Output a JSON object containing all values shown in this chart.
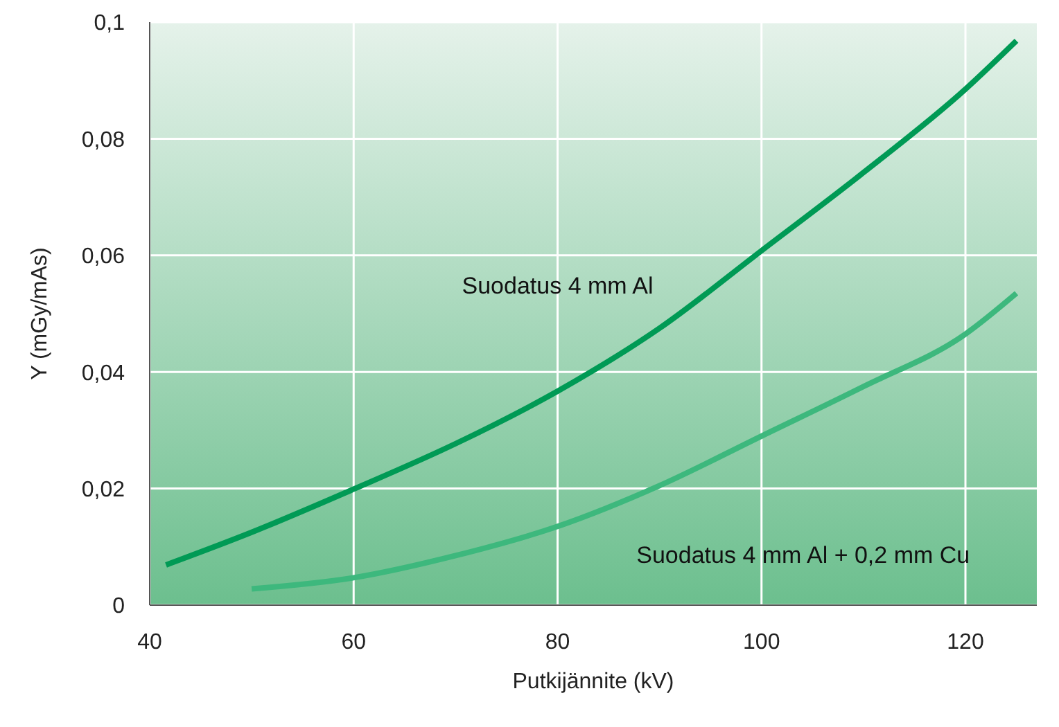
{
  "chart_data": {
    "type": "line",
    "xlabel": "Putkijännite (kV)",
    "ylabel": "Y (mGy/mAs)",
    "xlim": [
      40,
      127
    ],
    "xticks": [
      40,
      60,
      80,
      100,
      120
    ],
    "ylim": [
      0,
      0.1
    ],
    "yticks": [
      0,
      {
        "value": 0.02,
        "label": "0,02"
      },
      {
        "value": 0.04,
        "label": "0,04"
      },
      {
        "value": 0.06,
        "label": "0,06"
      },
      {
        "value": 0.08,
        "label": "0,08"
      },
      {
        "value": 0.1,
        "label": "0,1"
      }
    ],
    "grid": true,
    "marker": "none",
    "line_style": "solid",
    "series": [
      {
        "name": "Suodatus 4 mm Al",
        "color": "#009a55",
        "x": [
          41.6,
          50,
          60,
          70,
          80,
          90,
          100,
          110,
          120,
          125
        ],
        "values": [
          0.0069,
          0.0125,
          0.0199,
          0.0277,
          0.0367,
          0.0475,
          0.0608,
          0.0742,
          0.0885,
          0.0968
        ]
      },
      {
        "name": "Suodatus 4 mm Al + 0,2 mm Cu",
        "color": "#3db87d",
        "x": [
          50,
          60,
          70,
          80,
          90,
          100,
          110,
          120,
          125
        ],
        "values": [
          0.0028,
          0.0047,
          0.0085,
          0.0135,
          0.0205,
          0.029,
          0.0375,
          0.0465,
          0.0535
        ]
      }
    ]
  }
}
